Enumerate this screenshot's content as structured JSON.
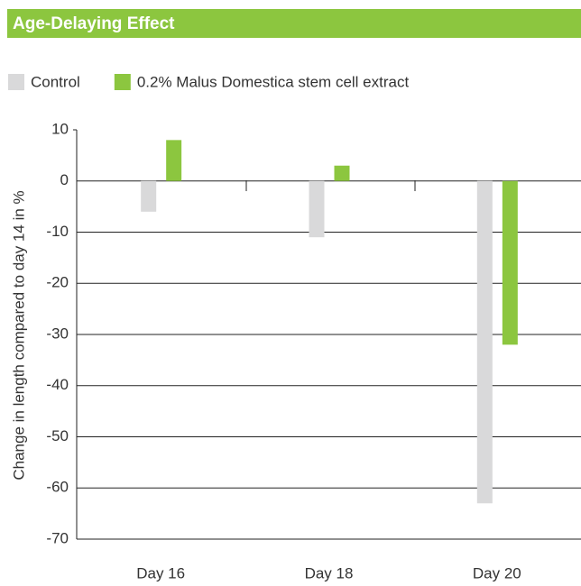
{
  "chart_data": {
    "type": "bar",
    "title": "Age-Delaying Effect",
    "categories": [
      "Day 16",
      "Day 18",
      "Day 20"
    ],
    "series": [
      {
        "name": "Control",
        "color": "#d9d9da",
        "values": [
          -6,
          -11,
          -63
        ]
      },
      {
        "name": "0.2% Malus Domestica stem cell extract",
        "color": "#8cc63f",
        "values": [
          8,
          3,
          -32
        ]
      }
    ],
    "y_label": "Change in length compared to day 14 in %",
    "ylim": [
      -70,
      10
    ],
    "yticks": [
      -70,
      -60,
      -50,
      -40,
      -30,
      -20,
      -10,
      0,
      10
    ],
    "grid": true,
    "legend": "top-left"
  }
}
